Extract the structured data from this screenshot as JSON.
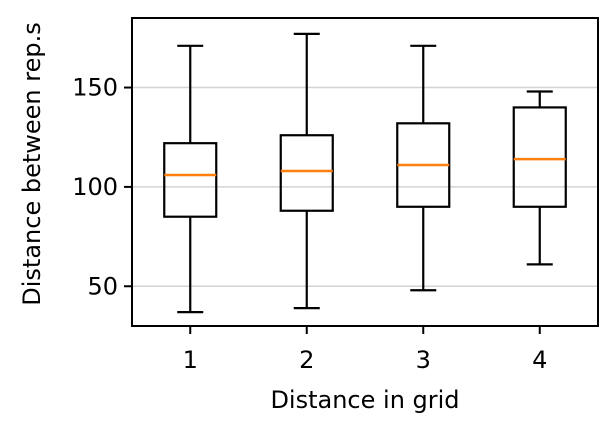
{
  "chart_data": {
    "type": "box",
    "title": "",
    "xlabel": "Distance in grid",
    "ylabel": "Distance between rep.s",
    "categories": [
      "1",
      "2",
      "3",
      "4"
    ],
    "boxes": [
      {
        "category": "1",
        "whisker_low": 37,
        "q1": 85,
        "median": 106,
        "q3": 122,
        "whisker_high": 171
      },
      {
        "category": "2",
        "whisker_low": 39,
        "q1": 88,
        "median": 108,
        "q3": 126,
        "whisker_high": 177
      },
      {
        "category": "3",
        "whisker_low": 48,
        "q1": 90,
        "median": 111,
        "q3": 132,
        "whisker_high": 171
      },
      {
        "category": "4",
        "whisker_low": 61,
        "q1": 90,
        "median": 114,
        "q3": 140,
        "whisker_high": 148
      }
    ],
    "y_ticks": [
      50,
      100,
      150
    ],
    "ylim": [
      30,
      185
    ],
    "grid": "horizontal",
    "colors": {
      "box": "#000000",
      "median": "#ff7f0e",
      "grid": "#d3d3d3"
    }
  }
}
